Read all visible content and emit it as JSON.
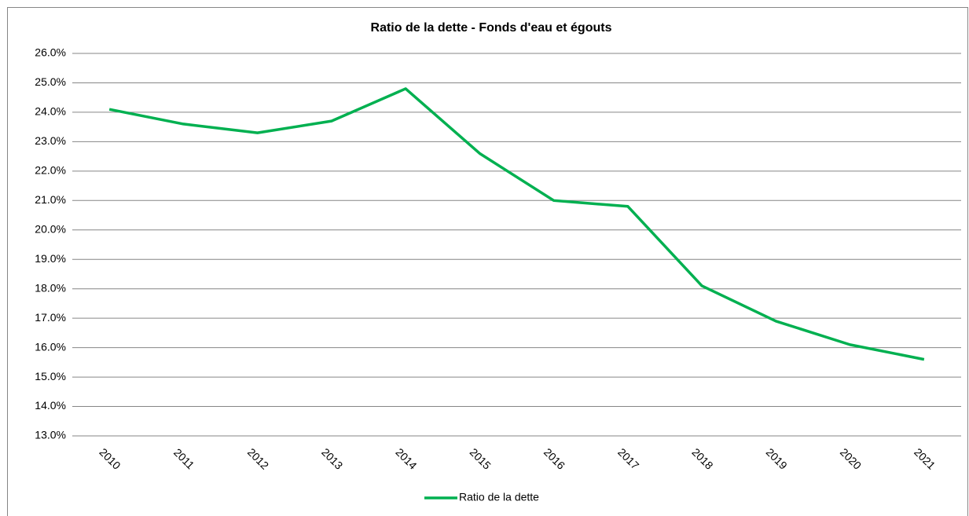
{
  "chart_data": {
    "type": "line",
    "title": "Ratio de la dette - Fonds d'eau et égouts",
    "categories": [
      "2010",
      "2011",
      "2012",
      "2013",
      "2014",
      "2015",
      "2016",
      "2017",
      "2018",
      "2019",
      "2020",
      "2021"
    ],
    "series": [
      {
        "name": "Ratio de la dette",
        "color": "#00b050",
        "values": [
          24.1,
          23.6,
          23.3,
          23.7,
          24.8,
          22.6,
          21.0,
          20.8,
          18.1,
          16.9,
          16.1,
          15.6
        ]
      }
    ],
    "ylim": [
      13,
      26
    ],
    "yticks": [
      {
        "value": 13,
        "label": "13.0%"
      },
      {
        "value": 14,
        "label": "14.0%"
      },
      {
        "value": 15,
        "label": "15.0%"
      },
      {
        "value": 16,
        "label": "16.0%"
      },
      {
        "value": 17,
        "label": "17.0%"
      },
      {
        "value": 18,
        "label": "18.0%"
      },
      {
        "value": 19,
        "label": "19.0%"
      },
      {
        "value": 20,
        "label": "20.0%"
      },
      {
        "value": 21,
        "label": "21.0%"
      },
      {
        "value": 22,
        "label": "22.0%"
      },
      {
        "value": 23,
        "label": "23.0%"
      },
      {
        "value": 24,
        "label": "24.0%"
      },
      {
        "value": 25,
        "label": "25.0%"
      },
      {
        "value": 26,
        "label": "26.0%"
      }
    ],
    "grid": true,
    "legend": "bottom"
  }
}
